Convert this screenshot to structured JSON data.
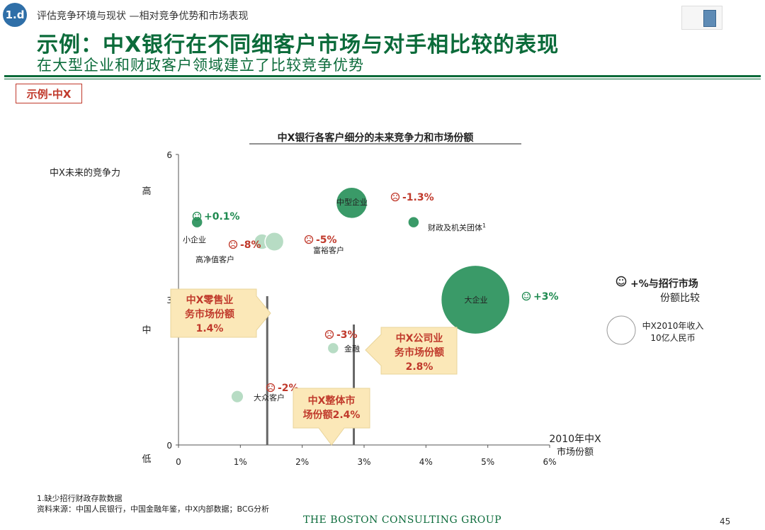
{
  "header": {
    "badge": "1.d",
    "breadcrumb": "评估竞争环境与现状 —相对竞争优势和市场表现",
    "title": "示例：中X银行在不同细客户市场与对手相比较的表现",
    "subtitle": "在大型企业和财政客户领域建立了比较竞争优势",
    "example_tag": "示例-中X"
  },
  "colors": {
    "brand_green": "#0b6b3a",
    "bubble_dark": "#3a9a68",
    "bubble_light": "#b7dcc4",
    "negative_red": "#c0392b",
    "positive_green": "#1f8a50",
    "callout_fill": "#fbe8b8",
    "callout_text": "#c0392b"
  },
  "chart_data": {
    "type": "scatter",
    "title": "中X银行各客户细分的未来竞争力和市场份额",
    "ylabel": "中X未来的竞争力",
    "xlabel": "2010年中X 市场份额",
    "xlim": [
      0,
      6
    ],
    "ylim": [
      0,
      6
    ],
    "x_ticks": [
      "0",
      "1%",
      "2%",
      "3%",
      "4%",
      "5%",
      "6%"
    ],
    "y_ticks": [
      "0",
      "3",
      "6"
    ],
    "y_level_labels": [
      "高",
      "中",
      "低"
    ],
    "series": [
      {
        "name": "小企业",
        "x": 0.3,
        "y": 4.6,
        "size": 0.2,
        "shade": "dark",
        "change": "+0.1%",
        "sentiment": "positive"
      },
      {
        "name": "高净值客户",
        "x": 1.35,
        "y": 4.2,
        "size": 0.5,
        "shade": "light",
        "change": "-8%",
        "sentiment": "negative"
      },
      {
        "name": "富裕客户",
        "x": 1.55,
        "y": 4.2,
        "size": 0.6,
        "shade": "light",
        "change": "-5%",
        "sentiment": "negative"
      },
      {
        "name": "中型企业",
        "x": 2.8,
        "y": 5.0,
        "size": 1.0,
        "shade": "dark",
        "change": "-1.3%",
        "sentiment": "negative"
      },
      {
        "name": "财政及机关团体",
        "x": 3.8,
        "y": 4.6,
        "size": 0.35,
        "shade": "dark",
        "change": "",
        "sentiment": "none"
      },
      {
        "name": "大企业",
        "x": 4.8,
        "y": 3.0,
        "size": 2.2,
        "shade": "dark",
        "change": "+3%",
        "sentiment": "positive"
      },
      {
        "name": "金融",
        "x": 2.5,
        "y": 2.0,
        "size": 0.3,
        "shade": "light",
        "change": "-3%",
        "sentiment": "negative"
      },
      {
        "name": "大众客户",
        "x": 0.95,
        "y": 1.0,
        "size": 0.4,
        "shade": "light",
        "change": "-2%",
        "sentiment": "negative"
      }
    ],
    "bubble_label_superscript": {
      "财政及机关团体": "1"
    },
    "reference_lines": [
      {
        "x": 1.4,
        "label": "中X零售业务市场份额 1.4%"
      },
      {
        "x": 2.8,
        "label": "中X公司业务市场份额 2.8%"
      },
      {
        "x": 2.4,
        "label": "中X整体市场份额2.4%"
      }
    ],
    "legend": {
      "change_label": "+%与招行市场份额比较",
      "change_symbol": "☺",
      "bubble_size_label": "中X2010年收入 10亿人民币"
    }
  },
  "footer": {
    "note1": "1.缺少招行财政存款数据",
    "source": "资料来源：中国人民银行，中国金融年鉴，中X内部数据；BCG分析",
    "logo": "THE BOSTON CONSULTING GROUP",
    "page_number": "45"
  }
}
